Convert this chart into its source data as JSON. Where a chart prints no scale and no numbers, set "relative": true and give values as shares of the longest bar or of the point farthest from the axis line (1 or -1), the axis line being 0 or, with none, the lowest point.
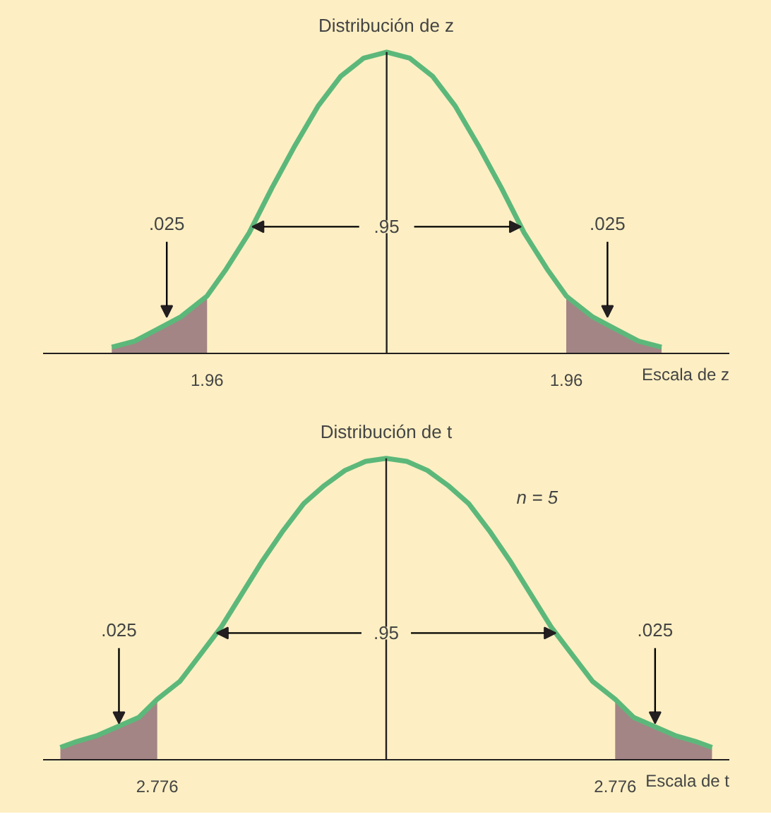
{
  "chart_data": [
    {
      "type": "line",
      "title": "Distribución de z",
      "xlabel": "Escala de z",
      "relative": true,
      "xlim": [
        -3.75,
        3.74
      ],
      "xticks": [
        {
          "value": -1.96,
          "label": "1.96"
        },
        {
          "value": 1.96,
          "label": "1.96"
        }
      ],
      "grid": false,
      "marker": "none",
      "line_style": "solid",
      "series": [
        {
          "type": "area",
          "color": "#a38585",
          "x": [
            -3,
            -2.75,
            -2.5,
            -2.25,
            -2,
            -1.96
          ],
          "values": [
            0.02,
            0.04,
            0.08,
            0.12,
            0.18,
            0.19
          ]
        },
        {
          "type": "area",
          "color": "#a38585",
          "x": [
            1.96,
            2,
            2.25,
            2.5,
            2.75,
            3
          ],
          "values": [
            0.19,
            0.18,
            0.12,
            0.08,
            0.04,
            0.02
          ]
        },
        {
          "color": "#5cb87a",
          "x": [
            -3,
            -2.75,
            -2.5,
            -2.25,
            -2,
            -1.96,
            -1.75,
            -1.5,
            -1.25,
            -1,
            -0.75,
            -0.5,
            -0.25,
            0,
            0.25,
            0.5,
            0.75,
            1,
            1.25,
            1.5,
            1.75,
            1.96,
            2,
            2.25,
            2.5,
            2.75,
            3
          ],
          "values": [
            0.02,
            0.04,
            0.08,
            0.12,
            0.18,
            0.19,
            0.28,
            0.4,
            0.55,
            0.69,
            0.82,
            0.92,
            0.98,
            1,
            0.98,
            0.92,
            0.82,
            0.69,
            0.55,
            0.4,
            0.28,
            0.19,
            0.18,
            0.12,
            0.08,
            0.04,
            0.02
          ]
        }
      ],
      "ref_lines": [
        {
          "axis": "x",
          "value": 0,
          "color": "#231f20"
        }
      ],
      "annotations": [
        {
          "text": ".025",
          "x": -2.4,
          "y": 0.11
        },
        {
          "text": ".95",
          "x": 0,
          "y": 0.42
        },
        {
          "text": ".025",
          "x": 2.41,
          "y": 0.11
        }
      ]
    },
    {
      "type": "line",
      "title": "Distribución de t",
      "xlabel": "Escala de t",
      "relative": true,
      "xlim": [
        -4.16,
        4.16
      ],
      "xticks": [
        {
          "value": -2.776,
          "label": "2.776"
        },
        {
          "value": 2.776,
          "label": "2.776"
        }
      ],
      "grid": false,
      "marker": "none",
      "line_style": "solid",
      "series": [
        {
          "type": "area",
          "color": "#a38585",
          "x": [
            -3.95,
            -3.75,
            -3.5,
            -3.25,
            -3,
            -2.776
          ],
          "values": [
            0.04,
            0.06,
            0.08,
            0.11,
            0.14,
            0.2
          ]
        },
        {
          "type": "area",
          "color": "#a38585",
          "x": [
            2.776,
            3,
            3.25,
            3.5,
            3.75,
            3.95
          ],
          "values": [
            0.2,
            0.14,
            0.11,
            0.08,
            0.06,
            0.04
          ]
        },
        {
          "color": "#5cb87a",
          "x": [
            -3.95,
            -3.75,
            -3.5,
            -3.25,
            -3,
            -2.776,
            -2.5,
            -2.25,
            -2,
            -1.75,
            -1.5,
            -1.25,
            -1,
            -0.75,
            -0.5,
            -0.25,
            0,
            0.25,
            0.5,
            0.75,
            1,
            1.25,
            1.5,
            1.75,
            2,
            2.25,
            2.5,
            2.776,
            3,
            3.25,
            3.5,
            3.75,
            3.95
          ],
          "values": [
            0.04,
            0.06,
            0.08,
            0.11,
            0.14,
            0.2,
            0.26,
            0.35,
            0.44,
            0.55,
            0.66,
            0.76,
            0.85,
            0.91,
            0.96,
            0.99,
            1,
            0.99,
            0.96,
            0.91,
            0.85,
            0.76,
            0.66,
            0.55,
            0.44,
            0.35,
            0.26,
            0.2,
            0.14,
            0.11,
            0.08,
            0.06,
            0.04
          ]
        }
      ],
      "ref_lines": [
        {
          "axis": "x",
          "value": 0,
          "color": "#231f20"
        }
      ],
      "annotations": [
        {
          "text": ".025",
          "x": -3.24,
          "y": 0.11
        },
        {
          "text": ".95",
          "x": 0,
          "y": 0.42
        },
        {
          "text": ".025",
          "x": 3.26,
          "y": 0.11
        },
        "n = 5"
      ]
    }
  ]
}
